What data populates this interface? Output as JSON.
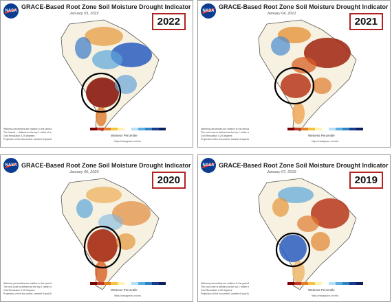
{
  "panels": [
    {
      "title": "GRACE-Based Root Zone Soil Moisture Drought Indicator",
      "date": "January 03, 2022",
      "year": "2022",
      "credit": "Wetness Percentile",
      "url": "https://nasagrace.unl.edu",
      "notes": [
        "Wetness percentiles are relative to the period 1948-2012",
        "The lowest ... defined as the top 1 meter of soil",
        "Grid Resolution 0.25 degrees",
        "Projection of the document: Lambert Equal Area (South America)"
      ],
      "circle": "SW"
    },
    {
      "title": "GRACE-Based Root Zone Soil Moisture Drought Indicator",
      "date": "January 04, 2021",
      "year": "2021",
      "credit": "Wetness Percentile",
      "url": "https://nasagrace.unl.edu",
      "notes": [
        "Wetness percentiles are relative to the period 1948-2012",
        "The root zone is defined as the top 1 meter of soil",
        "Grid Resolution 0.25 degrees",
        "Projection of the document: Lambert Equal Area (South America)"
      ],
      "circle": "S"
    },
    {
      "title": "GRACE-Based Root Zone Soil Moisture Drought Indicator",
      "date": "January 06, 2020",
      "year": "2020",
      "credit": "Wetness Percentile",
      "url": "https://nasagrace.unl.edu",
      "notes": [
        "Wetness percentiles are relative to the period 1948-2012",
        "The root zone is defined as the top 1 meter of soil",
        "Grid Resolution 0.25 degrees",
        "Projection of the document: Lambert Equal Area (South America)"
      ],
      "circle": "S"
    },
    {
      "title": "GRACE-Based Root Zone Soil Moisture Drought Indicator",
      "date": "January 07, 2019",
      "year": "2019",
      "credit": "Wetness Percentile",
      "url": "https://nasagrace.unl.edu",
      "notes": [
        "Wetness percentiles are relative to the period 1948-2012",
        "The root zone is defined as the top 1 meter of soil",
        "Grid Resolution 0.25 degrees",
        "Projection of the document: Lambert Equal Area (South America)"
      ],
      "circle": "S"
    }
  ],
  "colorbar": [
    "#7a0000",
    "#c0392b",
    "#e67e22",
    "#f5c242",
    "#fff3b0",
    "#ffffff",
    "#b3e0f2",
    "#5dade2",
    "#2e86c1",
    "#1a3a8f",
    "#0b1f5c"
  ]
}
